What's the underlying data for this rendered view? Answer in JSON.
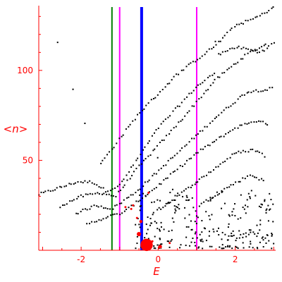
{
  "chart_data": {
    "type": "scatter",
    "title": "",
    "xlabel": "E",
    "ylabel": "<n>",
    "xlim": [
      -3.1,
      3.05
    ],
    "ylim": [
      0,
      136
    ],
    "grid": false,
    "xticks": [
      -2,
      0,
      2
    ],
    "yticks": [
      50,
      100
    ],
    "xtick_labels": [
      "-2",
      "0",
      "2"
    ],
    "ytick_labels": [
      "50",
      "100"
    ],
    "colors": {
      "axis": "#ff0000",
      "points": "#000000",
      "highlight": "#ff0000",
      "line_green": "#008000",
      "line_magenta": "#ff00ff",
      "line_blue": "#0000ff"
    },
    "vertical_lines": [
      {
        "x": -1.2,
        "color": "#008000",
        "width": 2
      },
      {
        "x": -1.0,
        "color": "#ff00ff",
        "width": 2
      },
      {
        "x": -0.43,
        "color": "#0000ff",
        "width": 4
      },
      {
        "x": 1.0,
        "color": "#ff00ff",
        "width": 2
      }
    ],
    "highlight_points": [
      {
        "x": -0.3,
        "y": 3,
        "r": 1.0
      },
      {
        "x": -0.5,
        "y": 9,
        "r": 0.35
      },
      {
        "x": -0.45,
        "y": 16,
        "r": 0.25
      },
      {
        "x": 0.05,
        "y": 2,
        "r": 0.3
      },
      {
        "x": -0.55,
        "y": 18,
        "r": 0.15
      },
      {
        "x": -0.7,
        "y": 23,
        "r": 0.15
      },
      {
        "x": -0.85,
        "y": 24,
        "r": 0.15
      },
      {
        "x": -0.15,
        "y": 5,
        "r": 0.15
      },
      {
        "x": 0.3,
        "y": 4,
        "r": 0.1
      },
      {
        "x": -0.25,
        "y": 32,
        "r": 0.1
      },
      {
        "x": -0.65,
        "y": 25,
        "r": 0.1
      }
    ],
    "curves": [
      {
        "x0": -3.1,
        "x1": 1.5,
        "ctrl": [
          [
            -3.1,
            31
          ],
          [
            -2.1,
            38
          ],
          [
            -1.7,
            38
          ],
          [
            -1.35,
            33
          ],
          [
            -1.0,
            36
          ],
          [
            0.0,
            68
          ],
          [
            1.0,
            91
          ],
          [
            1.5,
            99
          ]
        ]
      },
      {
        "x0": -2.6,
        "x1": 2.85,
        "ctrl": [
          [
            -2.6,
            24
          ],
          [
            -2.0,
            30
          ],
          [
            -1.5,
            32
          ],
          [
            -1.1,
            30
          ],
          [
            -0.6,
            44
          ],
          [
            0.5,
            70
          ],
          [
            1.5,
            95
          ],
          [
            2.3,
            109
          ],
          [
            2.85,
            115
          ]
        ]
      },
      {
        "x0": -2.2,
        "x1": 3.0,
        "ctrl": [
          [
            -2.2,
            20
          ],
          [
            -1.6,
            25
          ],
          [
            -1.2,
            23
          ],
          [
            -0.6,
            32
          ],
          [
            0.5,
            54
          ],
          [
            1.5,
            74
          ],
          [
            2.3,
            88
          ],
          [
            3.0,
            90
          ]
        ]
      },
      {
        "x0": -1.9,
        "x1": 2.9,
        "ctrl": [
          [
            -1.9,
            14
          ],
          [
            -1.4,
            18
          ],
          [
            -0.9,
            21
          ],
          [
            0.0,
            36
          ],
          [
            1.0,
            54
          ],
          [
            2.0,
            68
          ],
          [
            2.5,
            72
          ],
          [
            2.9,
            70
          ]
        ]
      },
      {
        "x0": 0.0,
        "x1": 2.8,
        "ctrl": [
          [
            0.0,
            22
          ],
          [
            1.0,
            38
          ],
          [
            2.0,
            54
          ],
          [
            2.5,
            56
          ],
          [
            2.8,
            52
          ]
        ]
      },
      {
        "x0": 1.0,
        "x1": 2.8,
        "ctrl": [
          [
            1.0,
            24
          ],
          [
            1.8,
            35
          ],
          [
            2.4,
            42
          ],
          [
            2.8,
            38
          ]
        ]
      },
      {
        "x0": -1.5,
        "x1": 3.05,
        "ctrl": [
          [
            -1.5,
            48
          ],
          [
            -0.5,
            76
          ],
          [
            0.5,
            98
          ],
          [
            1.5,
            114
          ],
          [
            2.0,
            125
          ],
          [
            2.4,
            128
          ],
          [
            2.7,
            131
          ],
          [
            3.05,
            136
          ]
        ]
      },
      {
        "x0": 1.5,
        "x1": 3.05,
        "ctrl": [
          [
            1.5,
            108
          ],
          [
            2.0,
            113
          ],
          [
            2.3,
            112
          ],
          [
            2.6,
            110
          ],
          [
            2.8,
            112
          ],
          [
            3.05,
            116
          ]
        ]
      }
    ],
    "cloud": {
      "xmin": -0.6,
      "xmax": 3.0,
      "ymin": 1,
      "ymax": 34,
      "count": 260
    }
  }
}
